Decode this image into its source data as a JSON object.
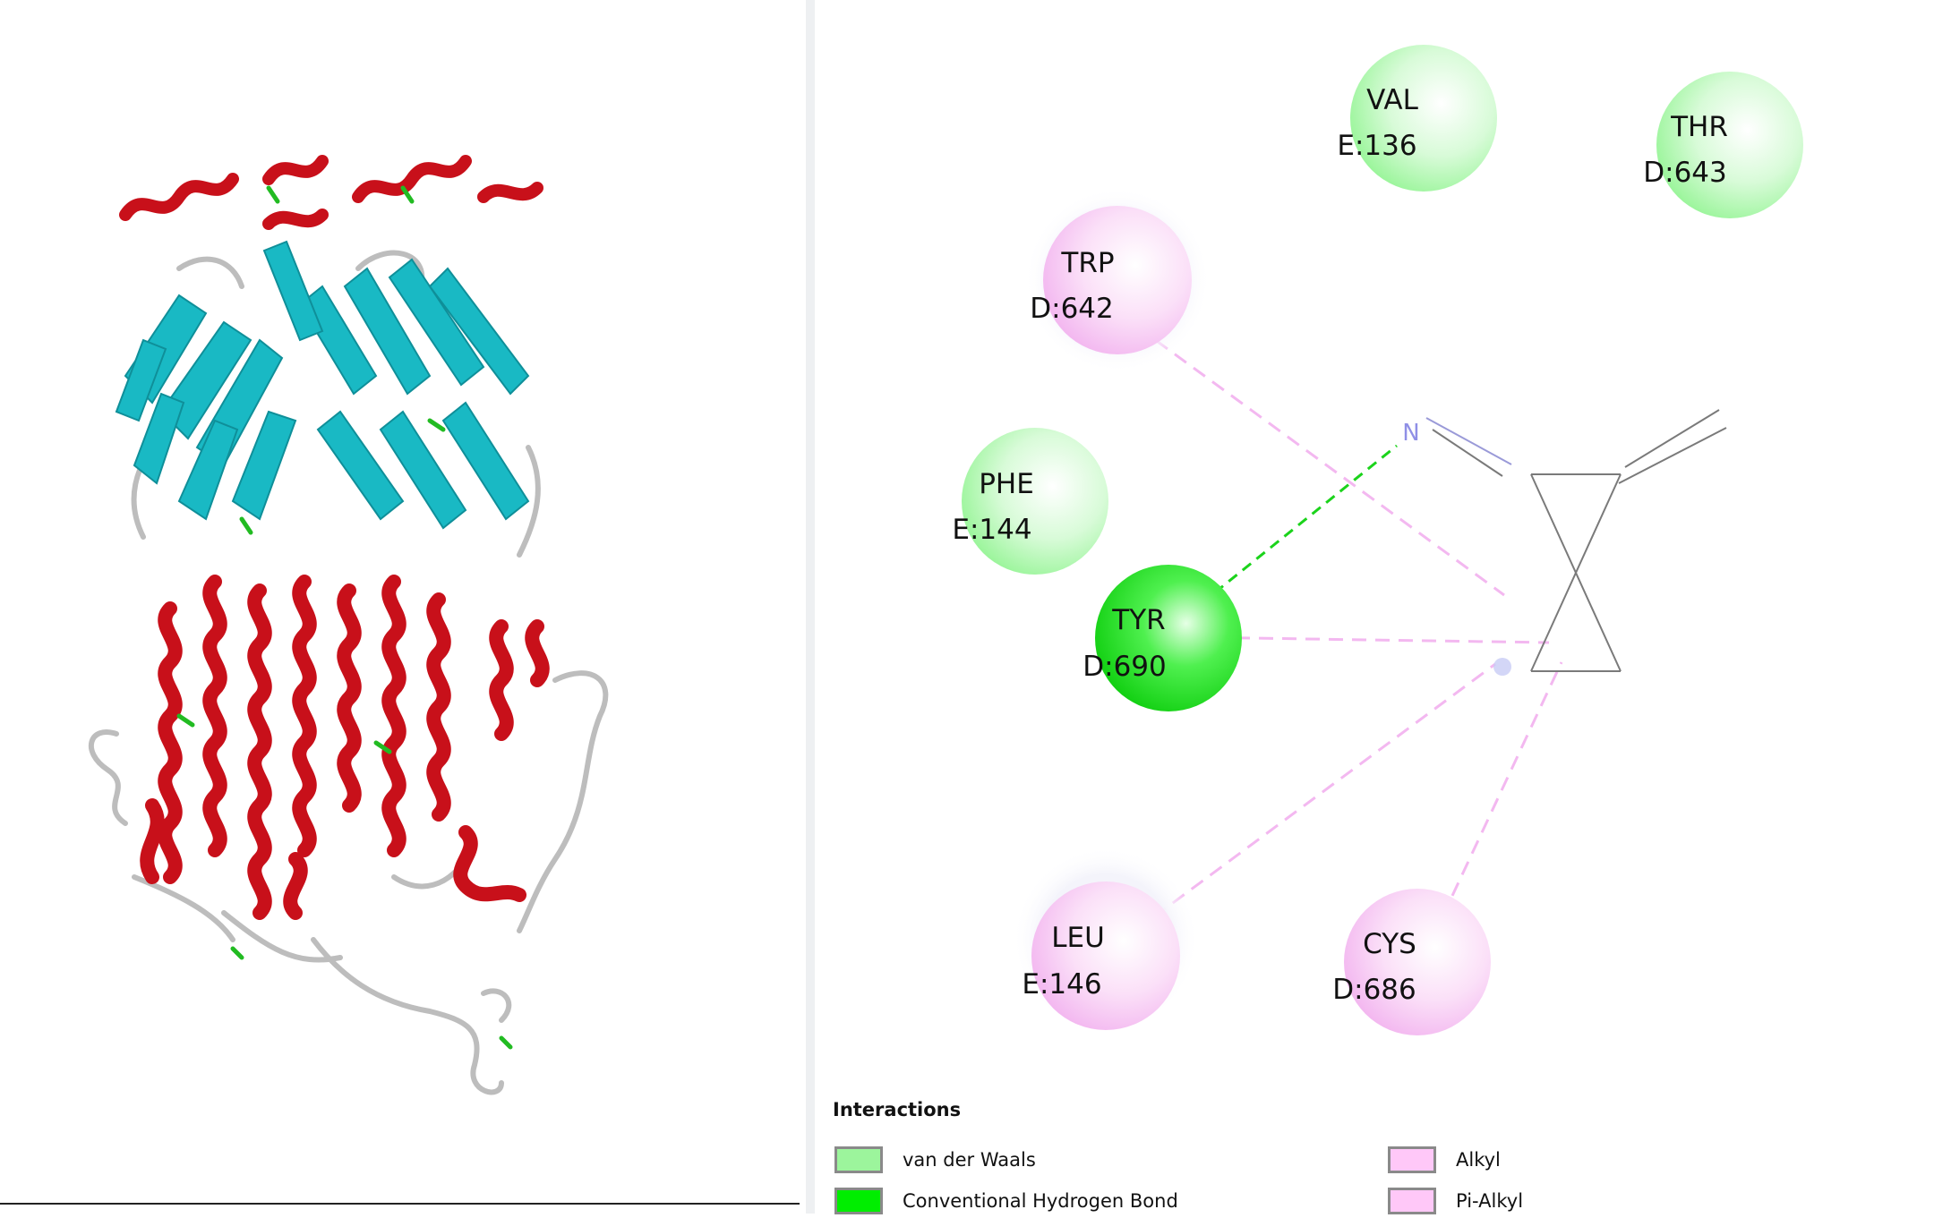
{
  "residues": [
    {
      "name": "VAL",
      "id": "E:136",
      "type": "van der Waals"
    },
    {
      "name": "THR",
      "id": "D:643",
      "type": "van der Waals"
    },
    {
      "name": "TRP",
      "id": "D:642",
      "type": "Alkyl"
    },
    {
      "name": "PHE",
      "id": "E:144",
      "type": "van der Waals"
    },
    {
      "name": "TYR",
      "id": "D:690",
      "type": "Conventional Hydrogen Bond"
    },
    {
      "name": "LEU",
      "id": "E:146",
      "type": "Pi-Alkyl"
    },
    {
      "name": "CYS",
      "id": "D:686",
      "type": "Alkyl"
    }
  ],
  "ligand": {
    "atom_label": "N"
  },
  "legend": {
    "title": "Interactions",
    "items": [
      {
        "label": "van der Waals",
        "color": "#9cf59c"
      },
      {
        "label": "Conventional Hydrogen Bond",
        "color": "#00ee00"
      },
      {
        "label": "Alkyl",
        "color": "#ffc8f8"
      },
      {
        "label": "Pi-Alkyl",
        "color": "#ffc8f8"
      }
    ]
  },
  "colors": {
    "van_der_waals": "#9cf59c",
    "hydrogen_bond": "#1bd31b",
    "alkyl": "#f3b8f0",
    "helix": "#c8101a",
    "sheet": "#19b9c4",
    "coil": "#bdbdbd",
    "turn": "#22bb22"
  }
}
